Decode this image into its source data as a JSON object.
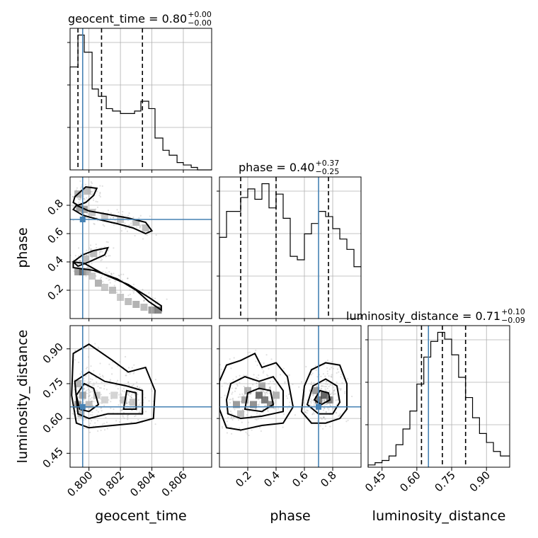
{
  "chart_data": {
    "type": "corner",
    "parameters": [
      "geocent_time",
      "phase",
      "luminosity_distance"
    ],
    "truths": {
      "geocent_time": 0.7996,
      "phase": 0.7,
      "luminosity_distance": 0.65
    },
    "titles": [
      {
        "param": "geocent_time",
        "label": "geocent_time = 0.80",
        "plus": "+0.00",
        "minus": "−0.00"
      },
      {
        "param": "phase",
        "label": "phase = 0.40",
        "plus": "+0.37",
        "minus": "−0.25"
      },
      {
        "param": "luminosity_distance",
        "label": "luminosity_distance = 0.71",
        "plus": "+0.10",
        "minus": "−0.09"
      }
    ],
    "axes": {
      "geocent_time": {
        "lim": [
          0.7988,
          0.8078
        ],
        "ticks": [
          0.8,
          0.802,
          0.804,
          0.806
        ],
        "ticklabels": [
          "0.800",
          "0.802",
          "0.804",
          "0.806"
        ]
      },
      "phase": {
        "lim": [
          0.0,
          1.0
        ],
        "ticks": [
          0.2,
          0.4,
          0.6,
          0.8
        ],
        "ticklabels": [
          "0.2",
          "0.4",
          "0.6",
          "0.8"
        ]
      },
      "luminosity_distance": {
        "lim": [
          0.39,
          1.0
        ],
        "ticks": [
          0.45,
          0.6,
          0.75,
          0.9
        ],
        "ticklabels": [
          "0.45",
          "0.60",
          "0.75",
          "0.90"
        ]
      }
    },
    "histograms": [
      {
        "param": "geocent_time",
        "bin_edges": [
          0.7988,
          0.7993,
          0.7997,
          0.8002,
          0.8006,
          0.8011,
          0.8015,
          0.802,
          0.8024,
          0.8029,
          0.8033,
          0.8038,
          0.8042,
          0.8047,
          0.8051,
          0.8056,
          0.806,
          0.8065,
          0.8069,
          0.8074,
          0.8078
        ],
        "counts": [
          42,
          55,
          48,
          33,
          30,
          25,
          24,
          23,
          23,
          24,
          28,
          25,
          13,
          8,
          6,
          3,
          2,
          1,
          0,
          0
        ],
        "quantiles": [
          0.7993,
          0.8008,
          0.8034
        ]
      },
      {
        "param": "phase",
        "bin_edges": [
          0.0,
          0.05,
          0.1,
          0.15,
          0.2,
          0.25,
          0.3,
          0.35,
          0.4,
          0.45,
          0.5,
          0.55,
          0.6,
          0.65,
          0.7,
          0.75,
          0.8,
          0.85,
          0.9,
          0.95,
          1.0
        ],
        "counts": [
          47,
          62,
          62,
          70,
          75,
          69,
          78,
          64,
          72,
          58,
          36,
          34,
          49,
          55,
          62,
          59,
          52,
          46,
          40,
          30
        ],
        "quantiles": [
          0.15,
          0.4,
          0.77
        ]
      },
      {
        "param": "luminosity_distance",
        "bin_edges": [
          0.39,
          0.42,
          0.45,
          0.48,
          0.51,
          0.54,
          0.57,
          0.6,
          0.63,
          0.66,
          0.69,
          0.72,
          0.75,
          0.78,
          0.81,
          0.84,
          0.87,
          0.9,
          0.93,
          0.96,
          1.0
        ],
        "counts": [
          1,
          2,
          3,
          5,
          10,
          17,
          25,
          37,
          49,
          56,
          60,
          57,
          50,
          40,
          31,
          22,
          15,
          11,
          7,
          5
        ],
        "quantiles": [
          0.62,
          0.71,
          0.81
        ]
      }
    ],
    "joint": [
      {
        "x": "geocent_time",
        "y": "phase",
        "description_points": "S-shaped band",
        "contours": [
          [
            [
              0.7991,
              0.86
            ],
            [
              0.7998,
              0.93
            ],
            [
              0.8005,
              0.92
            ],
            [
              0.8003,
              0.87
            ],
            [
              0.7998,
              0.82
            ],
            [
              0.7993,
              0.8
            ],
            [
              0.799,
              0.82
            ]
          ],
          [
            [
              0.7992,
              0.8
            ],
            [
              0.8,
              0.76
            ],
            [
              0.801,
              0.74
            ],
            [
              0.8025,
              0.71
            ],
            [
              0.8036,
              0.68
            ],
            [
              0.804,
              0.62
            ],
            [
              0.8036,
              0.6
            ],
            [
              0.8028,
              0.64
            ],
            [
              0.8018,
              0.67
            ],
            [
              0.8006,
              0.7
            ],
            [
              0.7996,
              0.73
            ],
            [
              0.799,
              0.77
            ]
          ],
          [
            [
              0.7996,
              0.45
            ],
            [
              0.8003,
              0.48
            ],
            [
              0.8012,
              0.5
            ],
            [
              0.801,
              0.45
            ],
            [
              0.8,
              0.4
            ],
            [
              0.7993,
              0.37
            ],
            [
              0.799,
              0.4
            ]
          ],
          [
            [
              0.799,
              0.36
            ],
            [
              0.8003,
              0.34
            ],
            [
              0.8018,
              0.28
            ],
            [
              0.803,
              0.2
            ],
            [
              0.8038,
              0.12
            ],
            [
              0.8046,
              0.06
            ],
            [
              0.8046,
              0.09
            ],
            [
              0.8038,
              0.15
            ],
            [
              0.8025,
              0.24
            ],
            [
              0.801,
              0.31
            ],
            [
              0.7997,
              0.39
            ],
            [
              0.799,
              0.4
            ]
          ]
        ],
        "density_cells": [
          [
            0.7993,
            0.33,
            0.45
          ],
          [
            0.7996,
            0.33,
            0.65
          ],
          [
            0.7999,
            0.33,
            0.35
          ],
          [
            0.8002,
            0.3,
            0.25
          ],
          [
            0.8006,
            0.25,
            0.35
          ],
          [
            0.801,
            0.22,
            0.25
          ],
          [
            0.8015,
            0.2,
            0.3
          ],
          [
            0.802,
            0.15,
            0.25
          ],
          [
            0.8025,
            0.12,
            0.3
          ],
          [
            0.803,
            0.1,
            0.35
          ],
          [
            0.8035,
            0.08,
            0.3
          ],
          [
            0.804,
            0.06,
            0.45
          ],
          [
            0.8044,
            0.06,
            0.55
          ],
          [
            0.7994,
            0.78,
            0.45
          ],
          [
            0.7997,
            0.77,
            0.4
          ],
          [
            0.8002,
            0.75,
            0.25
          ],
          [
            0.801,
            0.72,
            0.25
          ],
          [
            0.802,
            0.7,
            0.25
          ],
          [
            0.803,
            0.68,
            0.3
          ],
          [
            0.8036,
            0.64,
            0.3
          ],
          [
            0.7993,
            0.88,
            0.35
          ],
          [
            0.7999,
            0.9,
            0.3
          ],
          [
            0.8003,
            0.46,
            0.3
          ],
          [
            0.7998,
            0.42,
            0.3
          ]
        ]
      },
      {
        "x": "geocent_time",
        "y": "luminosity_distance",
        "contours": [
          [
            [
              0.7992,
              0.58
            ],
            [
              0.8,
              0.56
            ],
            [
              0.8015,
              0.57
            ],
            [
              0.803,
              0.58
            ],
            [
              0.8041,
              0.6
            ],
            [
              0.8042,
              0.72
            ],
            [
              0.8036,
              0.82
            ],
            [
              0.8025,
              0.8
            ],
            [
              0.8015,
              0.85
            ],
            [
              0.8,
              0.92
            ],
            [
              0.799,
              0.88
            ],
            [
              0.7989,
              0.7
            ]
          ],
          [
            [
              0.7993,
              0.62
            ],
            [
              0.8,
              0.6
            ],
            [
              0.8012,
              0.62
            ],
            [
              0.8022,
              0.62
            ],
            [
              0.8034,
              0.62
            ],
            [
              0.8034,
              0.72
            ],
            [
              0.8024,
              0.74
            ],
            [
              0.801,
              0.76
            ],
            [
              0.8,
              0.8
            ],
            [
              0.7991,
              0.76
            ]
          ],
          [
            [
              0.7994,
              0.64
            ],
            [
              0.8,
              0.63
            ],
            [
              0.8006,
              0.66
            ],
            [
              0.8003,
              0.73
            ],
            [
              0.7997,
              0.75
            ],
            [
              0.7992,
              0.7
            ]
          ],
          [
            [
              0.8022,
              0.64
            ],
            [
              0.803,
              0.64
            ],
            [
              0.803,
              0.71
            ],
            [
              0.8024,
              0.72
            ]
          ]
        ],
        "density_cells": [
          [
            0.7993,
            0.66,
            0.45
          ],
          [
            0.7996,
            0.7,
            0.4
          ],
          [
            0.7993,
            0.75,
            0.35
          ],
          [
            0.8,
            0.66,
            0.3
          ],
          [
            0.8005,
            0.7,
            0.25
          ],
          [
            0.801,
            0.68,
            0.2
          ],
          [
            0.8016,
            0.7,
            0.2
          ],
          [
            0.8022,
            0.68,
            0.25
          ],
          [
            0.8028,
            0.67,
            0.25
          ],
          [
            0.7995,
            0.62,
            0.3
          ]
        ]
      },
      {
        "x": "phase",
        "y": "luminosity_distance",
        "contours": [
          [
            [
              0.0,
              0.64
            ],
            [
              0.05,
              0.56
            ],
            [
              0.15,
              0.55
            ],
            [
              0.3,
              0.57
            ],
            [
              0.45,
              0.58
            ],
            [
              0.52,
              0.65
            ],
            [
              0.48,
              0.78
            ],
            [
              0.4,
              0.84
            ],
            [
              0.3,
              0.82
            ],
            [
              0.25,
              0.88
            ],
            [
              0.15,
              0.85
            ],
            [
              0.05,
              0.83
            ],
            [
              0.0,
              0.76
            ]
          ],
          [
            [
              0.06,
              0.62
            ],
            [
              0.15,
              0.6
            ],
            [
              0.3,
              0.61
            ],
            [
              0.45,
              0.63
            ],
            [
              0.45,
              0.72
            ],
            [
              0.38,
              0.78
            ],
            [
              0.28,
              0.76
            ],
            [
              0.18,
              0.78
            ],
            [
              0.08,
              0.75
            ],
            [
              0.05,
              0.68
            ]
          ],
          [
            [
              0.18,
              0.64
            ],
            [
              0.3,
              0.63
            ],
            [
              0.38,
              0.66
            ],
            [
              0.36,
              0.72
            ],
            [
              0.28,
              0.73
            ],
            [
              0.2,
              0.71
            ]
          ],
          [
            [
              0.58,
              0.63
            ],
            [
              0.65,
              0.58
            ],
            [
              0.75,
              0.58
            ],
            [
              0.85,
              0.6
            ],
            [
              0.9,
              0.64
            ],
            [
              0.9,
              0.75
            ],
            [
              0.85,
              0.83
            ],
            [
              0.75,
              0.84
            ],
            [
              0.65,
              0.81
            ],
            [
              0.6,
              0.74
            ]
          ],
          [
            [
              0.62,
              0.66
            ],
            [
              0.7,
              0.62
            ],
            [
              0.8,
              0.62
            ],
            [
              0.85,
              0.67
            ],
            [
              0.83,
              0.74
            ],
            [
              0.75,
              0.77
            ],
            [
              0.66,
              0.74
            ]
          ],
          [
            [
              0.67,
              0.68
            ],
            [
              0.72,
              0.66
            ],
            [
              0.78,
              0.68
            ],
            [
              0.77,
              0.71
            ],
            [
              0.71,
              0.72
            ]
          ]
        ],
        "density_cells": [
          [
            0.12,
            0.66,
            0.45
          ],
          [
            0.18,
            0.68,
            0.4
          ],
          [
            0.24,
            0.66,
            0.5
          ],
          [
            0.28,
            0.7,
            0.65
          ],
          [
            0.32,
            0.68,
            0.6
          ],
          [
            0.36,
            0.66,
            0.5
          ],
          [
            0.2,
            0.72,
            0.35
          ],
          [
            0.3,
            0.74,
            0.4
          ],
          [
            0.7,
            0.68,
            0.6
          ],
          [
            0.74,
            0.7,
            0.7
          ],
          [
            0.78,
            0.68,
            0.55
          ],
          [
            0.68,
            0.72,
            0.45
          ],
          [
            0.15,
            0.62,
            0.3
          ],
          [
            0.4,
            0.7,
            0.35
          ]
        ]
      }
    ]
  }
}
